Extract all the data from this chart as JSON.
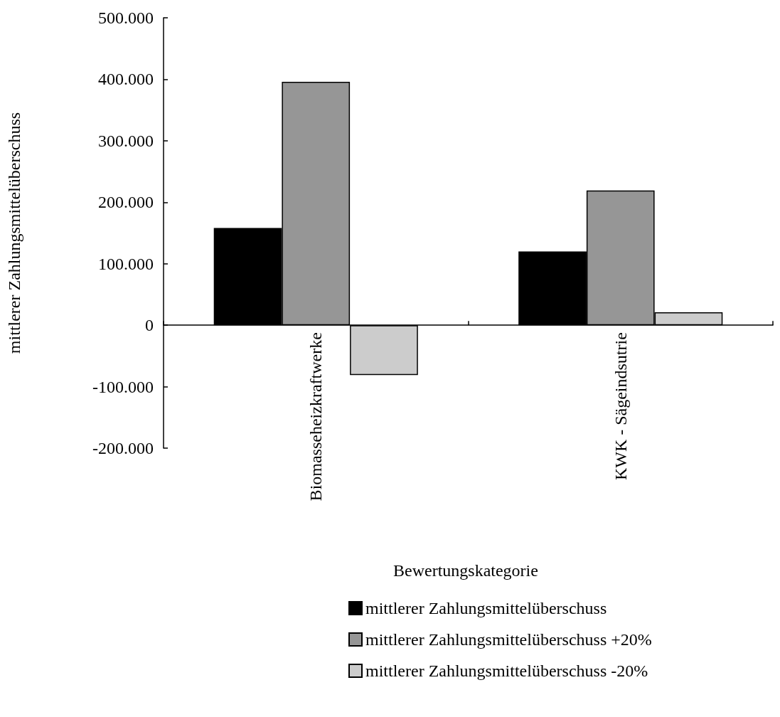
{
  "chart_data": {
    "type": "bar",
    "xlabel": "Bewertungskategorie",
    "ylabel": "mittlerer Zahlungsmittelüberschuss",
    "categories": [
      "Biomasseheizkraftwerke",
      "KWK - Sägeindsutrie"
    ],
    "series": [
      {
        "name": "mittlerer Zahlungsmittelüberschuss",
        "color": "#000000",
        "values": [
          158000,
          120000
        ]
      },
      {
        "name": "mittlerer Zahlungsmittelüberschuss +20%",
        "color": "#969696",
        "values": [
          396000,
          219000
        ]
      },
      {
        "name": "mittlerer Zahlungsmittelüberschuss -20%",
        "color": "#cccccc",
        "values": [
          -81000,
          21000
        ]
      }
    ],
    "ylim": [
      -200000,
      500000
    ],
    "yticks": [
      {
        "value": -200000,
        "label": "-200.000"
      },
      {
        "value": -100000,
        "label": "-100.000"
      },
      {
        "value": 0,
        "label": "0"
      },
      {
        "value": 100000,
        "label": "100.000"
      },
      {
        "value": 200000,
        "label": "200.000"
      },
      {
        "value": 300000,
        "label": "300.000"
      },
      {
        "value": 400000,
        "label": "400.000"
      },
      {
        "value": 500000,
        "label": "500.000"
      }
    ],
    "legend": "bottom"
  }
}
